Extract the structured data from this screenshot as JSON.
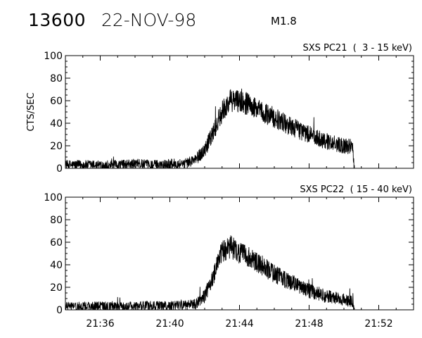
{
  "header": {
    "event_id": "13600",
    "date": "22-NOV-98",
    "flare_class": "M1.8"
  },
  "chart_data": [
    {
      "type": "line",
      "title": "SXS PC21  (  3 - 15 keV)",
      "ylabel": "CTS/SEC",
      "xlabel": "",
      "ylim": [
        0,
        100
      ],
      "xlim": [
        "21:34",
        "21:54"
      ],
      "yticks": [
        "0",
        "20",
        "40",
        "60",
        "80",
        "100"
      ],
      "xtick_labels": [],
      "profile": [
        [
          "21:34",
          3
        ],
        [
          "21:36",
          3
        ],
        [
          "21:37",
          3
        ],
        [
          "21:38",
          4
        ],
        [
          "21:39",
          3
        ],
        [
          "21:40",
          4
        ],
        [
          "21:40.5",
          4
        ],
        [
          "21:41",
          5
        ],
        [
          "21:41.5",
          8
        ],
        [
          "21:42",
          16
        ],
        [
          "21:42.5",
          32
        ],
        [
          "21:43",
          50
        ],
        [
          "21:43.5",
          60
        ],
        [
          "21:44",
          60
        ],
        [
          "21:44.5",
          57
        ],
        [
          "21:45",
          52
        ],
        [
          "21:46",
          45
        ],
        [
          "21:47",
          37
        ],
        [
          "21:48",
          30
        ],
        [
          "21:49",
          24
        ],
        [
          "21:50",
          20
        ],
        [
          "21:50.5",
          19
        ],
        [
          "21:50.6",
          0
        ]
      ],
      "noise_amplitude": 4,
      "end_time": "21:50.6"
    },
    {
      "type": "line",
      "title": "SXS PC22  ( 15 - 40 keV)",
      "ylabel": "",
      "xlabel": "",
      "ylim": [
        0,
        100
      ],
      "xlim": [
        "21:34",
        "21:54"
      ],
      "yticks": [
        "0",
        "20",
        "40",
        "60",
        "80",
        "100"
      ],
      "xtick_labels": [
        "21:36",
        "21:40",
        "21:44",
        "21:48",
        "21:52"
      ],
      "profile": [
        [
          "21:34",
          3
        ],
        [
          "21:36",
          3
        ],
        [
          "21:37",
          3
        ],
        [
          "21:38",
          3
        ],
        [
          "21:39",
          4
        ],
        [
          "21:40",
          3
        ],
        [
          "21:40.5",
          4
        ],
        [
          "21:41",
          4
        ],
        [
          "21:41.5",
          5
        ],
        [
          "21:42",
          12
        ],
        [
          "21:42.5",
          30
        ],
        [
          "21:43",
          52
        ],
        [
          "21:43.5",
          56
        ],
        [
          "21:44",
          50
        ],
        [
          "21:44.5",
          47
        ],
        [
          "21:45",
          42
        ],
        [
          "21:46",
          32
        ],
        [
          "21:47",
          24
        ],
        [
          "21:48",
          17
        ],
        [
          "21:49",
          12
        ],
        [
          "21:50",
          9
        ],
        [
          "21:50.5",
          7
        ],
        [
          "21:50.6",
          0
        ]
      ],
      "noise_amplitude": 4,
      "end_time": "21:50.6"
    }
  ]
}
